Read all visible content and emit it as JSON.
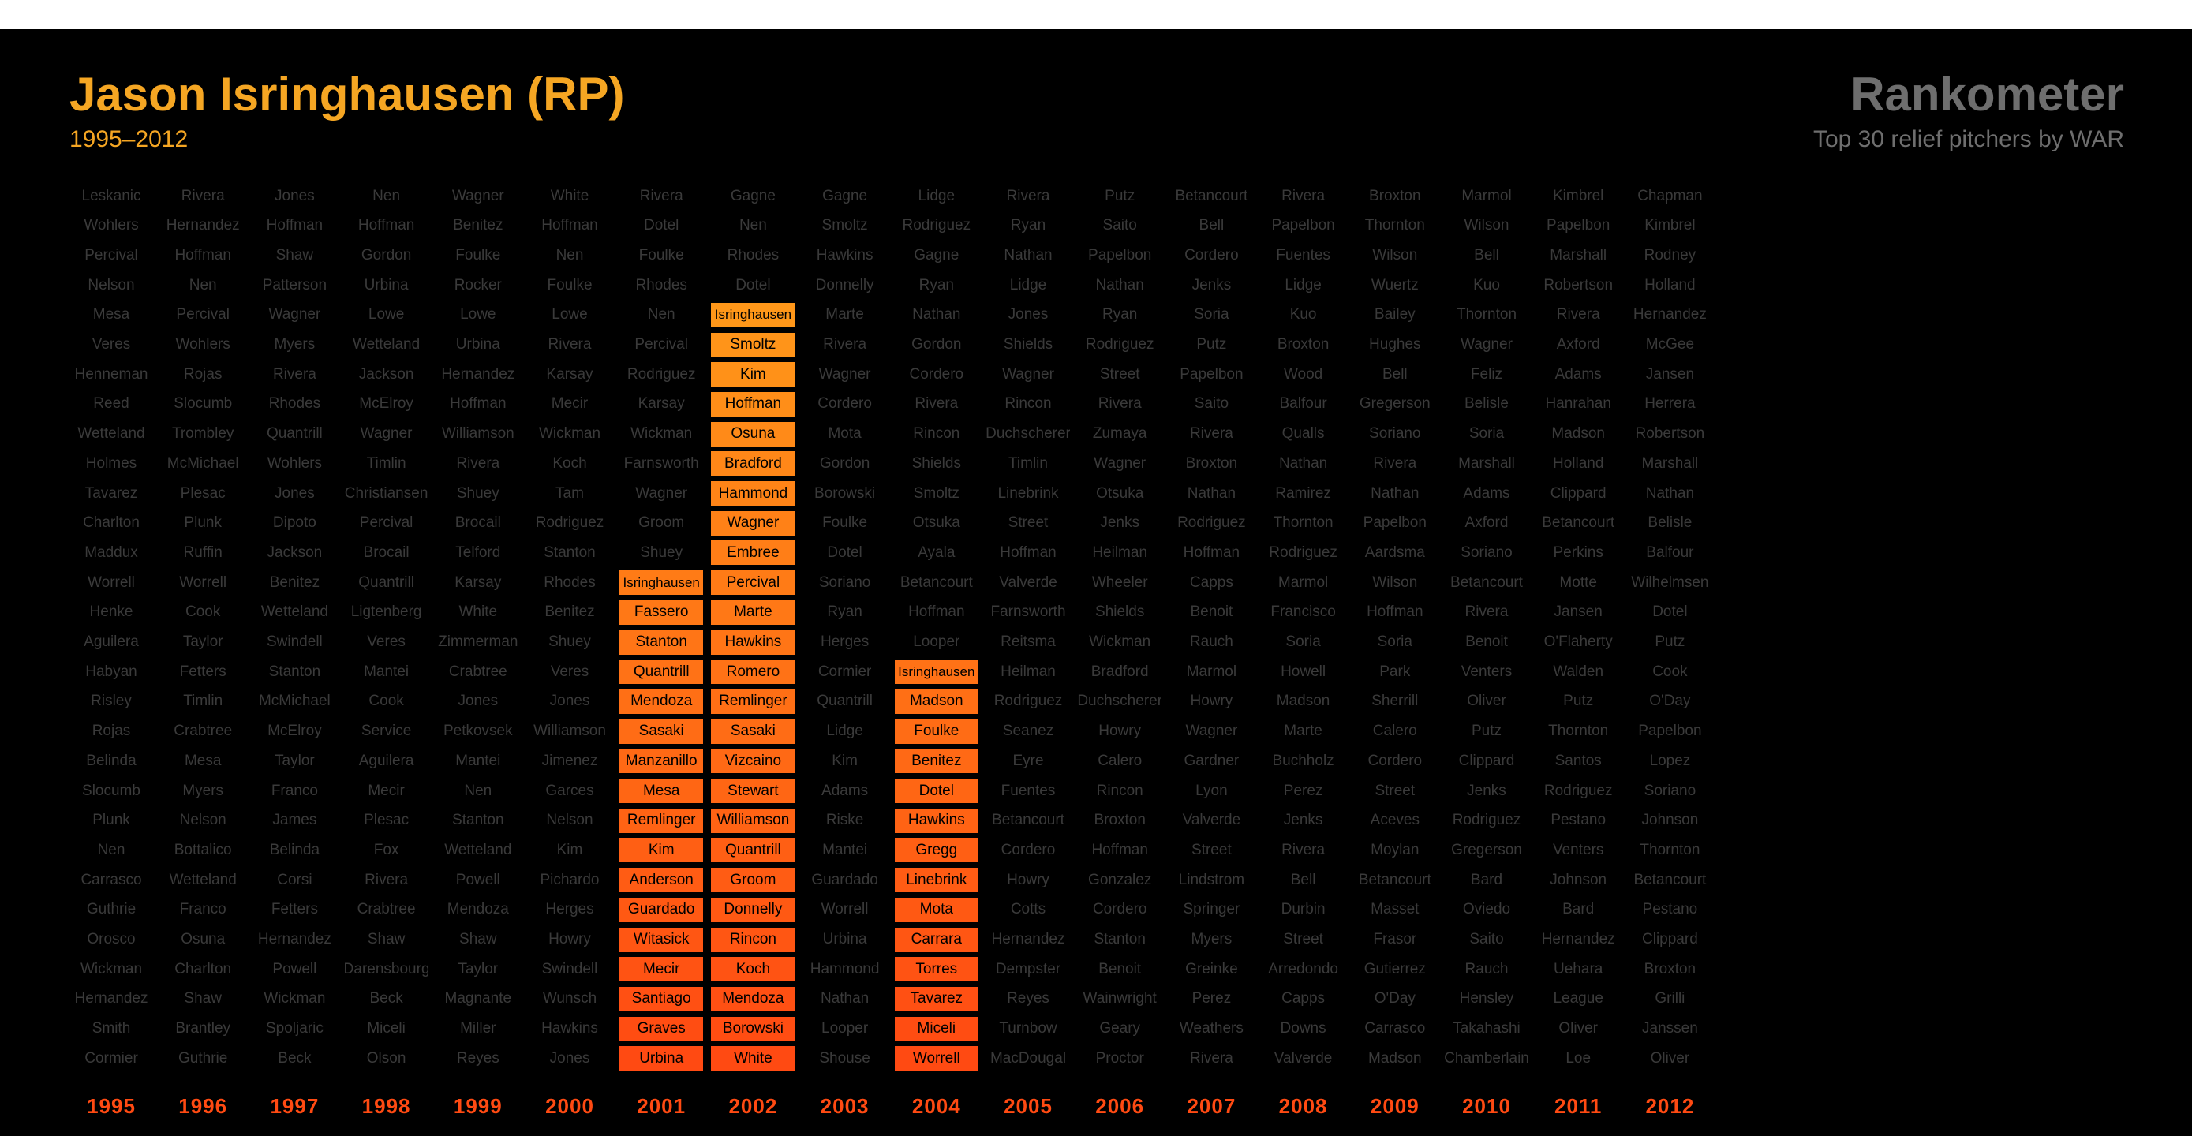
{
  "header": {
    "title": "Jason Isringhausen (RP)",
    "span": "1995–2012",
    "brand": "Rankometer",
    "brand_sub": "Top 30 relief pitchers by WAR"
  },
  "colors": {
    "background": "#000000",
    "title": "#f5a623",
    "brand": "#6e6e6e",
    "dim_text": "#3a3a3a",
    "year_label": "#ff4a12",
    "highlight_top": "#ffa31a",
    "highlight_bottom": "#ff4a12"
  },
  "chart_data": {
    "type": "table",
    "player": "Isringhausen",
    "years": [
      "1995",
      "1996",
      "1997",
      "1998",
      "1999",
      "2000",
      "2001",
      "2002",
      "2003",
      "2004",
      "2005",
      "2006",
      "2007",
      "2008",
      "2009",
      "2010",
      "2011",
      "2012"
    ],
    "columns": [
      {
        "year": "1995",
        "highlight": false,
        "names": [
          "Leskanic",
          "Wohlers",
          "Percival",
          "Nelson",
          "Mesa",
          "Veres",
          "Henneman",
          "Reed",
          "Wetteland",
          "Holmes",
          "Tavarez",
          "Charlton",
          "Maddux",
          "Worrell",
          "Henke",
          "Aguilera",
          "Habyan",
          "Risley",
          "Rojas",
          "Belinda",
          "Slocumb",
          "Plunk",
          "Nen",
          "Carrasco",
          "Guthrie",
          "Orosco",
          "Wickman",
          "Hernandez",
          "Smith",
          "Cormier"
        ]
      },
      {
        "year": "1996",
        "highlight": false,
        "names": [
          "Rivera",
          "Hernandez",
          "Hoffman",
          "Nen",
          "Percival",
          "Wohlers",
          "Rojas",
          "Slocumb",
          "Trombley",
          "McMichael",
          "Plesac",
          "Plunk",
          "Ruffin",
          "Worrell",
          "Cook",
          "Taylor",
          "Fetters",
          "Timlin",
          "Crabtree",
          "Mesa",
          "Myers",
          "Nelson",
          "Bottalico",
          "Wetteland",
          "Franco",
          "Osuna",
          "Charlton",
          "Shaw",
          "Brantley",
          "Guthrie"
        ]
      },
      {
        "year": "1997",
        "highlight": false,
        "names": [
          "Jones",
          "Hoffman",
          "Shaw",
          "Patterson",
          "Wagner",
          "Myers",
          "Rivera",
          "Rhodes",
          "Quantrill",
          "Wohlers",
          "Jones",
          "Dipoto",
          "Jackson",
          "Benitez",
          "Wetteland",
          "Swindell",
          "Stanton",
          "McMichael",
          "McElroy",
          "Taylor",
          "Franco",
          "James",
          "Belinda",
          "Corsi",
          "Fetters",
          "Hernandez",
          "Powell",
          "Wickman",
          "Spoljaric",
          "Beck"
        ]
      },
      {
        "year": "1998",
        "highlight": false,
        "names": [
          "Nen",
          "Hoffman",
          "Gordon",
          "Urbina",
          "Lowe",
          "Wetteland",
          "Jackson",
          "McElroy",
          "Wagner",
          "Timlin",
          "Christiansen",
          "Percival",
          "Brocail",
          "Quantrill",
          "Ligtenberg",
          "Veres",
          "Mantei",
          "Cook",
          "Service",
          "Aguilera",
          "Mecir",
          "Plesac",
          "Fox",
          "Rivera",
          "Crabtree",
          "Shaw",
          "Darensbourg",
          "Beck",
          "Miceli",
          "Olson"
        ]
      },
      {
        "year": "1999",
        "highlight": false,
        "names": [
          "Wagner",
          "Benitez",
          "Foulke",
          "Rocker",
          "Lowe",
          "Urbina",
          "Hernandez",
          "Hoffman",
          "Williamson",
          "Rivera",
          "Shuey",
          "Brocail",
          "Telford",
          "Karsay",
          "White",
          "Zimmerman",
          "Crabtree",
          "Jones",
          "Petkovsek",
          "Mantei",
          "Nen",
          "Stanton",
          "Wetteland",
          "Powell",
          "Mendoza",
          "Shaw",
          "Taylor",
          "Magnante",
          "Miller",
          "Reyes"
        ]
      },
      {
        "year": "2000",
        "highlight": false,
        "names": [
          "White",
          "Hoffman",
          "Nen",
          "Foulke",
          "Lowe",
          "Rivera",
          "Karsay",
          "Mecir",
          "Wickman",
          "Koch",
          "Tam",
          "Rodriguez",
          "Stanton",
          "Rhodes",
          "Benitez",
          "Shuey",
          "Veres",
          "Jones",
          "Williamson",
          "Jimenez",
          "Garces",
          "Nelson",
          "Kim",
          "Pichardo",
          "Herges",
          "Howry",
          "Swindell",
          "Wunsch",
          "Hawkins",
          "Jones"
        ]
      },
      {
        "year": "2001",
        "highlight": true,
        "rank": 14,
        "names": [
          "Rivera",
          "Dotel",
          "Foulke",
          "Rhodes",
          "Nen",
          "Percival",
          "Rodriguez",
          "Karsay",
          "Wickman",
          "Farnsworth",
          "Wagner",
          "Groom",
          "Shuey",
          "Isringhausen",
          "Fassero",
          "Stanton",
          "Quantrill",
          "Mendoza",
          "Sasaki",
          "Manzanillo",
          "Mesa",
          "Remlinger",
          "Kim",
          "Anderson",
          "Guardado",
          "Witasick",
          "Mecir",
          "Santiago",
          "Graves",
          "Urbina"
        ]
      },
      {
        "year": "2002",
        "highlight": true,
        "rank": 5,
        "names": [
          "Gagne",
          "Nen",
          "Rhodes",
          "Dotel",
          "Isringhausen",
          "Smoltz",
          "Kim",
          "Hoffman",
          "Osuna",
          "Bradford",
          "Hammond",
          "Wagner",
          "Embree",
          "Percival",
          "Marte",
          "Hawkins",
          "Romero",
          "Remlinger",
          "Sasaki",
          "Vizcaino",
          "Stewart",
          "Williamson",
          "Quantrill",
          "Groom",
          "Donnelly",
          "Rincon",
          "Koch",
          "Mendoza",
          "Borowski",
          "White"
        ]
      },
      {
        "year": "2003",
        "highlight": false,
        "names": [
          "Gagne",
          "Smoltz",
          "Hawkins",
          "Donnelly",
          "Marte",
          "Rivera",
          "Wagner",
          "Cordero",
          "Mota",
          "Gordon",
          "Borowski",
          "Foulke",
          "Dotel",
          "Soriano",
          "Ryan",
          "Herges",
          "Cormier",
          "Quantrill",
          "Lidge",
          "Kim",
          "Adams",
          "Riske",
          "Mantei",
          "Guardado",
          "Worrell",
          "Urbina",
          "Hammond",
          "Nathan",
          "Looper",
          "Shouse"
        ]
      },
      {
        "year": "2004",
        "highlight": true,
        "rank": 17,
        "names": [
          "Lidge",
          "Rodriguez",
          "Gagne",
          "Ryan",
          "Nathan",
          "Gordon",
          "Cordero",
          "Rivera",
          "Rincon",
          "Shields",
          "Smoltz",
          "Otsuka",
          "Ayala",
          "Betancourt",
          "Hoffman",
          "Looper",
          "Isringhausen",
          "Madson",
          "Foulke",
          "Benitez",
          "Dotel",
          "Hawkins",
          "Gregg",
          "Linebrink",
          "Mota",
          "Carrara",
          "Torres",
          "Tavarez",
          "Miceli",
          "Worrell"
        ]
      },
      {
        "year": "2005",
        "highlight": false,
        "names": [
          "Rivera",
          "Ryan",
          "Nathan",
          "Lidge",
          "Jones",
          "Shields",
          "Wagner",
          "Rincon",
          "Duchscherer",
          "Timlin",
          "Linebrink",
          "Street",
          "Hoffman",
          "Valverde",
          "Farnsworth",
          "Reitsma",
          "Heilman",
          "Rodriguez",
          "Seanez",
          "Eyre",
          "Fuentes",
          "Betancourt",
          "Cordero",
          "Howry",
          "Cotts",
          "Hernandez",
          "Dempster",
          "Reyes",
          "Turnbow",
          "MacDougal"
        ]
      },
      {
        "year": "2006",
        "highlight": false,
        "names": [
          "Putz",
          "Saito",
          "Papelbon",
          "Nathan",
          "Ryan",
          "Rodriguez",
          "Street",
          "Rivera",
          "Zumaya",
          "Wagner",
          "Otsuka",
          "Jenks",
          "Heilman",
          "Wheeler",
          "Shields",
          "Wickman",
          "Bradford",
          "Duchscherer",
          "Howry",
          "Calero",
          "Rincon",
          "Broxton",
          "Hoffman",
          "Gonzalez",
          "Cordero",
          "Stanton",
          "Benoit",
          "Wainwright",
          "Geary",
          "Proctor"
        ]
      },
      {
        "year": "2007",
        "highlight": false,
        "names": [
          "Betancourt",
          "Bell",
          "Cordero",
          "Jenks",
          "Soria",
          "Putz",
          "Papelbon",
          "Saito",
          "Rivera",
          "Broxton",
          "Nathan",
          "Rodriguez",
          "Hoffman",
          "Capps",
          "Benoit",
          "Rauch",
          "Marmol",
          "Howry",
          "Wagner",
          "Gardner",
          "Lyon",
          "Valverde",
          "Street",
          "Lindstrom",
          "Springer",
          "Myers",
          "Greinke",
          "Perez",
          "Weathers",
          "Rivera"
        ]
      },
      {
        "year": "2008",
        "highlight": false,
        "names": [
          "Rivera",
          "Papelbon",
          "Fuentes",
          "Lidge",
          "Kuo",
          "Broxton",
          "Wood",
          "Balfour",
          "Qualls",
          "Nathan",
          "Ramirez",
          "Thornton",
          "Rodriguez",
          "Marmol",
          "Francisco",
          "Soria",
          "Howell",
          "Madson",
          "Marte",
          "Buchholz",
          "Perez",
          "Jenks",
          "Rivera",
          "Bell",
          "Durbin",
          "Street",
          "Arredondo",
          "Capps",
          "Downs",
          "Valverde"
        ]
      },
      {
        "year": "2009",
        "highlight": false,
        "names": [
          "Broxton",
          "Thornton",
          "Wilson",
          "Wuertz",
          "Bailey",
          "Hughes",
          "Bell",
          "Gregerson",
          "Soriano",
          "Rivera",
          "Nathan",
          "Papelbon",
          "Aardsma",
          "Wilson",
          "Hoffman",
          "Soria",
          "Park",
          "Sherrill",
          "Calero",
          "Cordero",
          "Street",
          "Aceves",
          "Moylan",
          "Betancourt",
          "Masset",
          "Frasor",
          "Gutierrez",
          "O'Day",
          "Carrasco",
          "Madson"
        ]
      },
      {
        "year": "2010",
        "highlight": false,
        "names": [
          "Marmol",
          "Wilson",
          "Bell",
          "Kuo",
          "Thornton",
          "Wagner",
          "Feliz",
          "Belisle",
          "Soria",
          "Marshall",
          "Adams",
          "Axford",
          "Soriano",
          "Betancourt",
          "Rivera",
          "Benoit",
          "Venters",
          "Oliver",
          "Putz",
          "Clippard",
          "Jenks",
          "Rodriguez",
          "Gregerson",
          "Bard",
          "Oviedo",
          "Saito",
          "Rauch",
          "Hensley",
          "Takahashi",
          "Chamberlain"
        ]
      },
      {
        "year": "2011",
        "highlight": false,
        "names": [
          "Kimbrel",
          "Papelbon",
          "Marshall",
          "Robertson",
          "Rivera",
          "Axford",
          "Adams",
          "Hanrahan",
          "Madson",
          "Holland",
          "Clippard",
          "Betancourt",
          "Perkins",
          "Motte",
          "Jansen",
          "O'Flaherty",
          "Walden",
          "Putz",
          "Thornton",
          "Santos",
          "Rodriguez",
          "Pestano",
          "Venters",
          "Johnson",
          "Bard",
          "Hernandez",
          "Uehara",
          "League",
          "Oliver",
          "Loe"
        ]
      },
      {
        "year": "2012",
        "highlight": false,
        "names": [
          "Chapman",
          "Kimbrel",
          "Rodney",
          "Holland",
          "Hernandez",
          "McGee",
          "Jansen",
          "Herrera",
          "Robertson",
          "Marshall",
          "Nathan",
          "Belisle",
          "Balfour",
          "Wilhelmsen",
          "Dotel",
          "Putz",
          "Cook",
          "O'Day",
          "Papelbon",
          "Lopez",
          "Soriano",
          "Johnson",
          "Thornton",
          "Betancourt",
          "Pestano",
          "Clippard",
          "Broxton",
          "Grilli",
          "Janssen",
          "Oliver"
        ]
      }
    ]
  }
}
